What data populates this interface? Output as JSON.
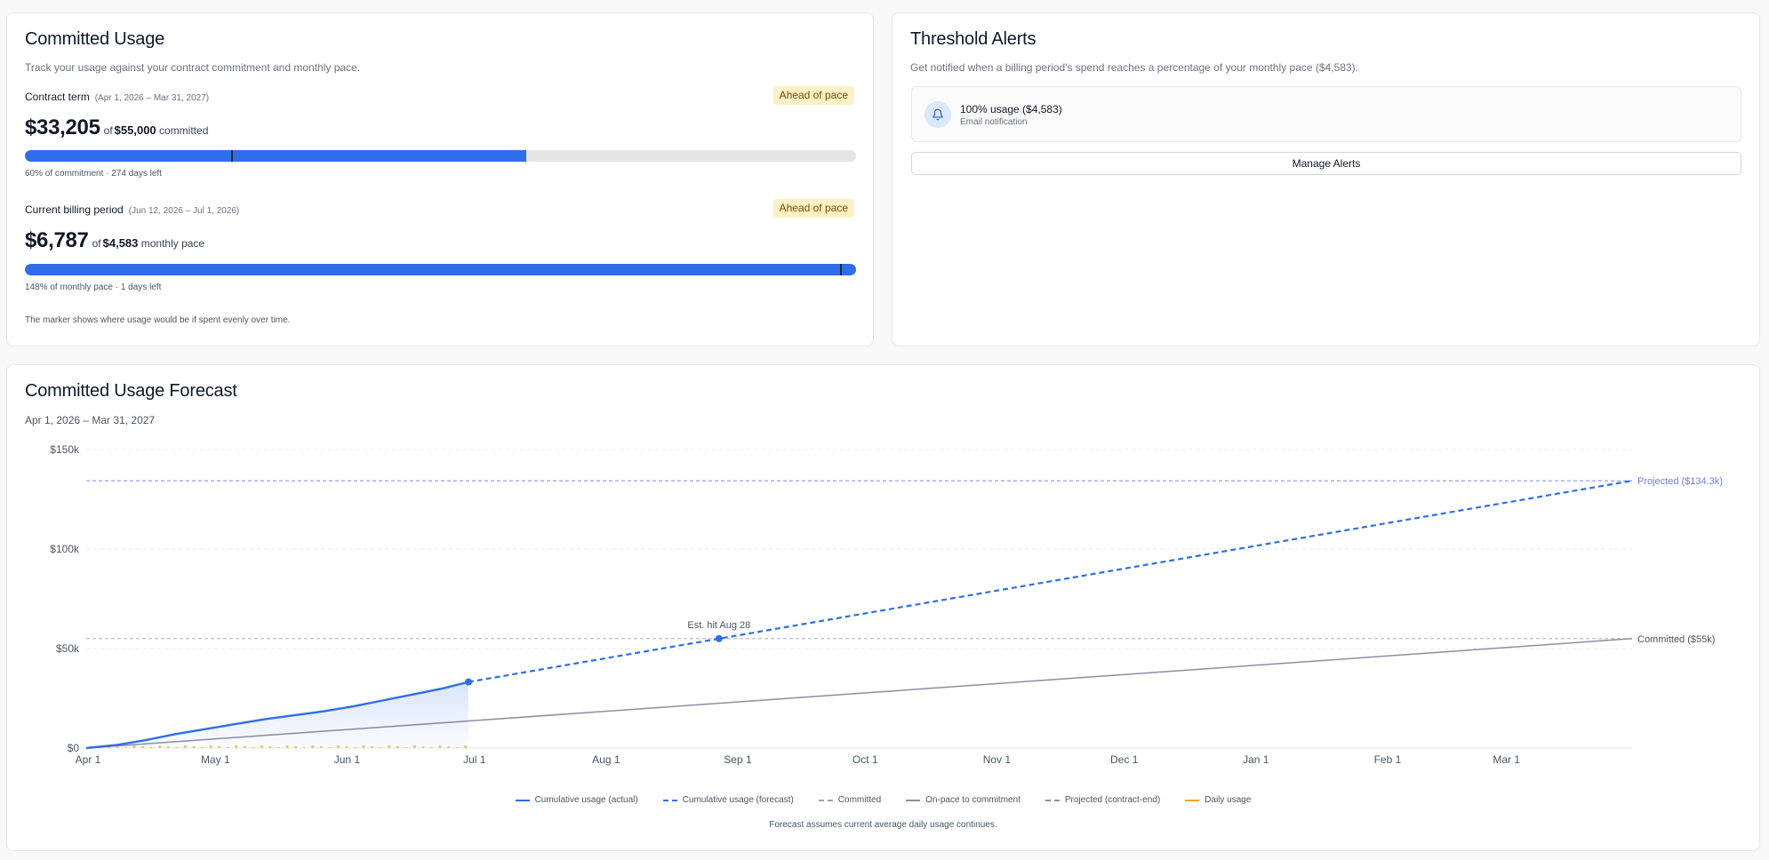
{
  "usage": {
    "title": "Committed Usage",
    "description": "Track your usage against your contract commitment and monthly pace.",
    "contract": {
      "label": "Contract term",
      "range": "(Apr 1, 2026 – Mar 31, 2027)",
      "badge": "Ahead of pace",
      "amount": "$33,205",
      "of": "of",
      "target": "$55,000",
      "suffix": "committed",
      "fill_fraction": 0.6037,
      "marker_fraction": 0.249,
      "meta": "60% of commitment · 274 days left"
    },
    "billing": {
      "label": "Current billing period",
      "range": "(Jun 12, 2026 – Jul 1, 2026)",
      "badge": "Ahead of pace",
      "amount": "$6,787",
      "of": "of",
      "target": "$4,583",
      "suffix": "monthly pace",
      "fill_fraction": 1.0,
      "marker_fraction": 0.982,
      "meta": "148% of monthly pace · 1 days left"
    },
    "footnote": "The marker shows where usage would be if spent evenly over time."
  },
  "alerts": {
    "title": "Threshold Alerts",
    "description": "Get notified when a billing period's spend reaches a percentage of your monthly pace ($4,583).",
    "items": [
      {
        "title": "100% usage ($4,583)",
        "subtitle": "Email notification",
        "icon": "bell-icon"
      }
    ],
    "manage_label": "Manage Alerts"
  },
  "forecast": {
    "title": "Committed Usage Forecast",
    "range": "Apr 1, 2026 – Mar 31, 2027",
    "note": "Forecast assumes current average daily usage continues.",
    "legend": [
      {
        "label": "Cumulative usage (actual)",
        "color": "#2f6ee8",
        "style": "solid"
      },
      {
        "label": "Cumulative usage (forecast)",
        "color": "#2f6ee8",
        "style": "dashed"
      },
      {
        "label": "Committed",
        "color": "#9ca3af",
        "style": "dashed"
      },
      {
        "label": "On-pace to commitment",
        "color": "#8f8ca3",
        "style": "solid"
      },
      {
        "label": "Projected (contract-end)",
        "color": "#8f8ca3",
        "style": "dashed"
      },
      {
        "label": "Daily usage",
        "color": "#f5a623",
        "style": "solid"
      }
    ]
  },
  "chart_data": {
    "type": "line",
    "x_ticks": [
      "Apr 1",
      "May 1",
      "Jun 1",
      "Jul 1",
      "Aug 1",
      "Sep 1",
      "Oct 1",
      "Nov 1",
      "Dec 1",
      "Jan 1",
      "Feb 1",
      "Mar 1"
    ],
    "x_tick_days": [
      0,
      30,
      61,
      91,
      122,
      153,
      183,
      214,
      244,
      275,
      306,
      334
    ],
    "x_unit": "days since Apr 1, 2026",
    "x_range": [
      0,
      364
    ],
    "y_ticks": [
      "$0",
      "$50k",
      "$100k",
      "$150k"
    ],
    "y_tick_values": [
      0,
      50000,
      100000,
      150000
    ],
    "ylim": [
      0,
      150000
    ],
    "grid": true,
    "series": [
      {
        "name": "Cumulative usage (actual)",
        "x": [
          0,
          7,
          14,
          21,
          28,
          35,
          42,
          49,
          56,
          63,
          70,
          77,
          84,
          90
        ],
        "values": [
          0,
          1500,
          4000,
          7000,
          9500,
          12000,
          14500,
          16500,
          18500,
          21000,
          24000,
          27000,
          30000,
          33205
        ]
      },
      {
        "name": "Cumulative usage (forecast)",
        "x": [
          90,
          364
        ],
        "values": [
          33205,
          134300
        ]
      },
      {
        "name": "Committed",
        "x": [
          0,
          364
        ],
        "values": [
          55000,
          55000
        ]
      },
      {
        "name": "On-pace to commitment",
        "x": [
          0,
          364
        ],
        "values": [
          0,
          55000
        ]
      },
      {
        "name": "Projected (contract-end)",
        "x": [
          0,
          364
        ],
        "values": [
          134300,
          134300
        ]
      }
    ],
    "annotations": [
      {
        "text": "Est. hit Aug 28",
        "x": 149,
        "y": 55000
      },
      {
        "text": "Projected ($134.3k)",
        "x": 364,
        "y": 134300
      },
      {
        "text": "Committed ($55k)",
        "x": 364,
        "y": 55000
      }
    ]
  }
}
